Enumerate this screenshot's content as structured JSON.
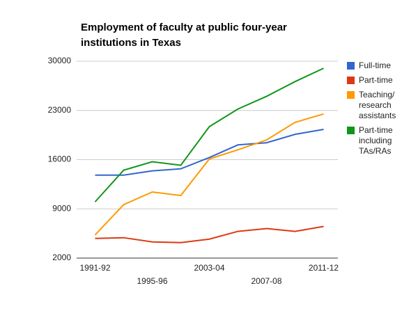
{
  "chart_data": {
    "type": "line",
    "title": "Employment of faculty at public four-year institutions in Texas",
    "categories": [
      "1991-92",
      null,
      "1995-96",
      null,
      "2003-04",
      null,
      "2007-08",
      null,
      "2011-12"
    ],
    "series": [
      {
        "name": "Full-time",
        "color": "#3366cc",
        "values": [
          13800,
          13800,
          14400,
          14700,
          16300,
          18100,
          18400,
          19600,
          20300
        ]
      },
      {
        "name": "Part-time",
        "color": "#dc3912",
        "values": [
          4800,
          4900,
          4300,
          4200,
          4700,
          5800,
          6200,
          5800,
          6500
        ]
      },
      {
        "name": "Teaching/ research assistants",
        "color": "#ff9900",
        "values": [
          5300,
          9600,
          11400,
          10900,
          16100,
          17400,
          18800,
          21300,
          22500
        ]
      },
      {
        "name": "Part-time including TAs/RAs",
        "color": "#109618",
        "values": [
          10000,
          14500,
          15700,
          15200,
          20700,
          23200,
          25000,
          27100,
          29000
        ]
      }
    ],
    "ylim": [
      2000,
      30000
    ],
    "yticks": [
      2000,
      9000,
      16000,
      23000,
      30000
    ],
    "grid": true,
    "legend": "right"
  }
}
